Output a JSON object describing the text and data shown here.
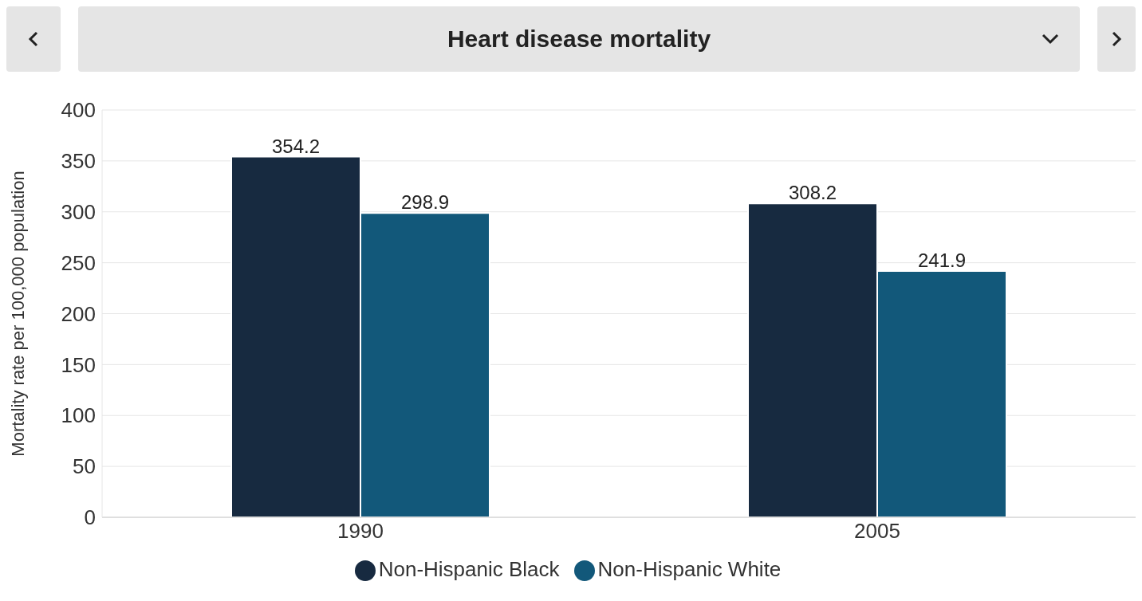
{
  "chart_data": {
    "type": "bar",
    "title": "Heart disease mortality",
    "ylabel": "Mortality rate per 100,000 population",
    "categories": [
      "1990",
      "2005"
    ],
    "series": [
      {
        "name": "Non-Hispanic Black",
        "color": "#172a40",
        "values": [
          354.2,
          308.2
        ]
      },
      {
        "name": "Non-Hispanic White",
        "color": "#12587a",
        "values": [
          298.9,
          241.9
        ]
      }
    ],
    "ylim": [
      0,
      400
    ],
    "yticks": [
      0,
      50,
      100,
      150,
      200,
      250,
      300,
      350,
      400
    ],
    "grid": "y",
    "legend": "bottom",
    "data_labels": true
  }
}
